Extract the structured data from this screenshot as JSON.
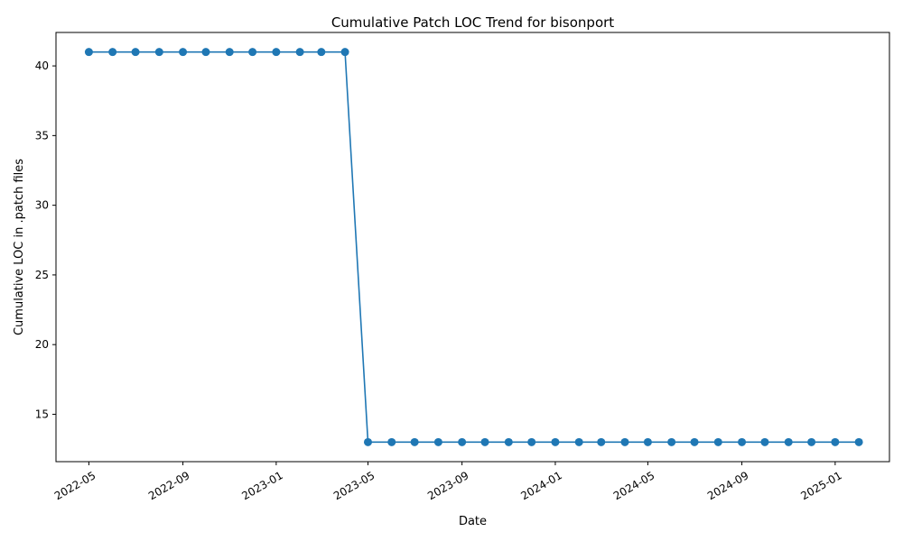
{
  "chart_data": {
    "type": "line",
    "title": "Cumulative Patch LOC Trend for bisonport",
    "xlabel": "Date",
    "ylabel": "Cumulative LOC in .patch files",
    "xlim": [
      "2022-03-19",
      "2025-03-13"
    ],
    "ylim": [
      11.6,
      42.4
    ],
    "x_ticks": [
      "2022-05",
      "2022-09",
      "2023-01",
      "2023-05",
      "2023-09",
      "2024-01",
      "2024-05",
      "2024-09",
      "2025-01"
    ],
    "y_ticks": [
      15,
      20,
      25,
      30,
      35,
      40
    ],
    "grid": false,
    "color": "#1f77b4",
    "series": [
      {
        "x": [
          "2022-05-01",
          "2022-06-01",
          "2022-07-01",
          "2022-08-01",
          "2022-09-01",
          "2022-10-01",
          "2022-11-01",
          "2022-12-01",
          "2023-01-01",
          "2023-02-01",
          "2023-03-01",
          "2023-04-01",
          "2023-05-01",
          "2023-06-01",
          "2023-07-01",
          "2023-08-01",
          "2023-09-01",
          "2023-10-01",
          "2023-11-01",
          "2023-12-01",
          "2024-01-01",
          "2024-02-01",
          "2024-03-01",
          "2024-04-01",
          "2024-05-01",
          "2024-06-01",
          "2024-07-01",
          "2024-08-01",
          "2024-09-01",
          "2024-10-01",
          "2024-11-01",
          "2024-12-01",
          "2025-01-01",
          "2025-02-01"
        ],
        "y": [
          41,
          41,
          41,
          41,
          41,
          41,
          41,
          41,
          41,
          41,
          41,
          41,
          13,
          13,
          13,
          13,
          13,
          13,
          13,
          13,
          13,
          13,
          13,
          13,
          13,
          13,
          13,
          13,
          13,
          13,
          13,
          13,
          13,
          13
        ]
      }
    ]
  }
}
